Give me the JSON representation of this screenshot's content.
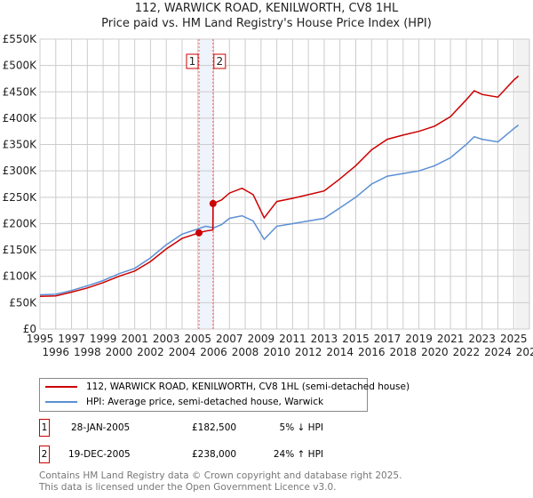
{
  "chart_data": {
    "type": "line",
    "title": "112, WARWICK ROAD, KENILWORTH, CV8 1HL",
    "subtitle": "Price paid vs. HM Land Registry's House Price Index (HPI)",
    "xlim": [
      1995,
      2026
    ],
    "ylim": [
      0,
      550000
    ],
    "x_ticks": [
      "1995",
      "1996",
      "1997",
      "1998",
      "1999",
      "2000",
      "2001",
      "2002",
      "2003",
      "2004",
      "2005",
      "2006",
      "2007",
      "2008",
      "2009",
      "2010",
      "2011",
      "2012",
      "2013",
      "2014",
      "2015",
      "2016",
      "2017",
      "2018",
      "2019",
      "2020",
      "2021",
      "2022",
      "2023",
      "2024",
      "2025",
      "2026"
    ],
    "y_ticks": [
      "£0",
      "£50K",
      "£100K",
      "£150K",
      "£200K",
      "£250K",
      "£300K",
      "£350K",
      "£400K",
      "£450K",
      "£500K",
      "£550K"
    ],
    "grid": true,
    "series": [
      {
        "name": "112, WARWICK ROAD, KENILWORTH, CV8 1HL (semi-detached house)",
        "color": "#cc0000",
        "x": [
          1995,
          1996,
          1997,
          1998,
          1999,
          2000,
          2001,
          2002,
          2003,
          2004,
          2005.07,
          2005.5,
          2005.95,
          2005.96,
          2006.5,
          2007,
          2007.8,
          2008.5,
          2009.2,
          2010,
          2011,
          2012,
          2013,
          2014,
          2015,
          2016,
          2017,
          2018,
          2019,
          2020,
          2021,
          2022,
          2022.5,
          2023,
          2024,
          2025,
          2025.3
        ],
        "values": [
          62000,
          63000,
          70000,
          78000,
          88000,
          100000,
          110000,
          128000,
          152000,
          172000,
          182500,
          186000,
          188000,
          238000,
          245000,
          258000,
          267000,
          255000,
          211000,
          242000,
          248000,
          255000,
          262000,
          285000,
          310000,
          340000,
          360000,
          368000,
          375000,
          385000,
          403000,
          435000,
          452000,
          445000,
          440000,
          472000,
          480000
        ]
      },
      {
        "name": "HPI: Average price, semi-detached house, Warwick",
        "color": "#5b8fd4",
        "x": [
          1995,
          1996,
          1997,
          1998,
          1999,
          2000,
          2001,
          2002,
          2003,
          2004,
          2005,
          2005.5,
          2006,
          2006.5,
          2007,
          2007.8,
          2008.5,
          2009.2,
          2010,
          2011,
          2012,
          2013,
          2014,
          2015,
          2016,
          2017,
          2018,
          2019,
          2020,
          2021,
          2022,
          2022.5,
          2023,
          2024,
          2025,
          2025.3
        ],
        "values": [
          65000,
          66000,
          73000,
          82000,
          92000,
          105000,
          115000,
          135000,
          160000,
          180000,
          190000,
          195000,
          192000,
          198000,
          210000,
          215000,
          205000,
          170000,
          195000,
          200000,
          205000,
          210000,
          230000,
          250000,
          275000,
          290000,
          295000,
          300000,
          310000,
          325000,
          350000,
          365000,
          360000,
          355000,
          380000,
          387000
        ]
      }
    ],
    "annotations": [
      {
        "label": "1",
        "x": 2005.07,
        "value": 182500
      },
      {
        "label": "2",
        "x": 2005.96,
        "value": 238000
      }
    ],
    "shade_range": [
      2005.07,
      2005.96
    ],
    "hatch_from": 2025.1
  },
  "transactions": [
    {
      "n": "1",
      "date": "28-JAN-2005",
      "price": "£182,500",
      "delta": "5% ↓ HPI"
    },
    {
      "n": "2",
      "date": "19-DEC-2005",
      "price": "£238,000",
      "delta": "24% ↑ HPI"
    }
  ],
  "footer": [
    "Contains HM Land Registry data © Crown copyright and database right 2025.",
    "This data is licensed under the Open Government Licence v3.0."
  ]
}
